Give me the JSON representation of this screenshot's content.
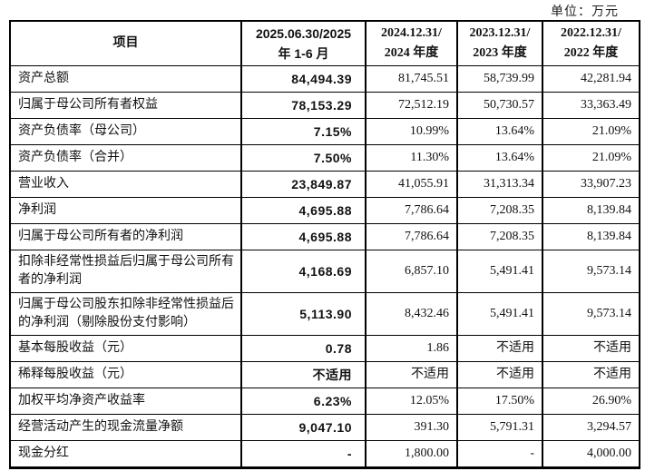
{
  "unit_label": "单位：万元",
  "table": {
    "headers": [
      {
        "line1": "项目",
        "line2": ""
      },
      {
        "line1": "2025.06.30/2025",
        "line2": "年 1-6 月"
      },
      {
        "line1": "2024.12.31/",
        "line2": "2024 年度"
      },
      {
        "line1": "2023.12.31/",
        "line2": "2023 年度"
      },
      {
        "line1": "2022.12.31/",
        "line2": "2022 年度"
      }
    ],
    "rows": [
      {
        "label": "资产总额",
        "values": [
          "84,494.39",
          "81,745.51",
          "58,739.99",
          "42,281.94"
        ]
      },
      {
        "label": "归属于母公司所有者权益",
        "values": [
          "78,153.29",
          "72,512.19",
          "50,730.57",
          "33,363.49"
        ]
      },
      {
        "label": "资产负债率（母公司）",
        "values": [
          "7.15%",
          "10.99%",
          "13.64%",
          "21.09%"
        ]
      },
      {
        "label": "资产负债率（合并）",
        "values": [
          "7.50%",
          "11.30%",
          "13.64%",
          "21.09%"
        ]
      },
      {
        "label": "营业收入",
        "values": [
          "23,849.87",
          "41,055.91",
          "31,313.34",
          "33,907.23"
        ]
      },
      {
        "label": "净利润",
        "values": [
          "4,695.88",
          "7,786.64",
          "7,208.35",
          "8,139.84"
        ]
      },
      {
        "label": "归属于母公司所有者的净利润",
        "values": [
          "4,695.88",
          "7,786.64",
          "7,208.35",
          "8,139.84"
        ]
      },
      {
        "label": "扣除非经常性损益后归属于母公司所有者的净利润",
        "values": [
          "4,168.69",
          "6,857.10",
          "5,491.41",
          "9,573.14"
        ]
      },
      {
        "label": "归属于母公司股东扣除非经常性损益后的净利润（剔除股份支付影响）",
        "values": [
          "5,113.90",
          "8,432.46",
          "5,491.41",
          "9,573.14"
        ]
      },
      {
        "label": "基本每股收益（元）",
        "values": [
          "0.78",
          "1.86",
          "不适用",
          "不适用"
        ]
      },
      {
        "label": "稀释每股收益（元）",
        "values": [
          "不适用",
          "不适用",
          "不适用",
          "不适用"
        ]
      },
      {
        "label": "加权平均净资产收益率",
        "values": [
          "6.23%",
          "12.05%",
          "17.50%",
          "26.90%"
        ]
      },
      {
        "label": "经营活动产生的现金流量净额",
        "values": [
          "9,047.10",
          "391.30",
          "5,791.31",
          "3,294.57"
        ]
      },
      {
        "label": "现金分红",
        "values": [
          "-",
          "1,800.00",
          "-",
          "4,000.00"
        ]
      }
    ]
  }
}
